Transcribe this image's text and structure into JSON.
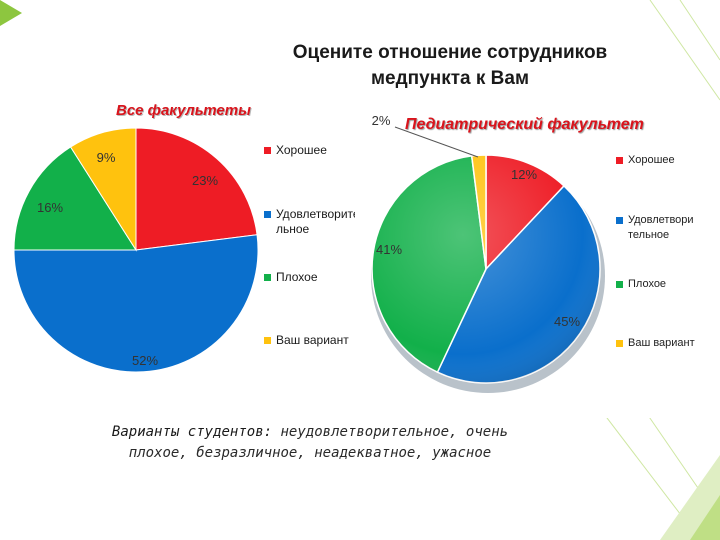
{
  "slide": {
    "title_line1": "Оцените отношение сотрудников",
    "title_line2": "медпункта к Вам",
    "footnote_lead": "Варианты студентов:",
    "footnote_rest_line1": " неудовлетворительное, очень",
    "footnote_line2": "плохое, безразличное, неадекватное, ужасное"
  },
  "colors": {
    "good": "#ee1c25",
    "satisfactory": "#0a6fcc",
    "bad": "#12b04a",
    "other": "#ffc20e",
    "accent": "#8dc63f",
    "subtitle": "#d9141c"
  },
  "chart_data": [
    {
      "type": "pie",
      "title": "Все факультеты",
      "categories": [
        "Хорошее",
        "Удовлетворительное",
        "Плохое",
        "Ваш вариант"
      ],
      "legend": [
        "Хорошее",
        "Удовлетворите льное",
        "Плохое",
        "Ваш вариант"
      ],
      "values": [
        23,
        52,
        16,
        9
      ],
      "data_labels": [
        "23%",
        "52%",
        "16%",
        "9%"
      ],
      "legend_position": "right"
    },
    {
      "type": "pie",
      "title": "Педиатрический факультет",
      "categories": [
        "Хорошее",
        "Удовлетворительное",
        "Плохое",
        "Ваш вариант"
      ],
      "legend": [
        "Хорошее",
        "Удовлетвори тельное",
        "Плохое",
        "Ваш вариант"
      ],
      "values": [
        12,
        45,
        41,
        2
      ],
      "data_labels": [
        "12%",
        "45%",
        "41%",
        "2%"
      ],
      "legend_position": "right",
      "style": "3d"
    }
  ]
}
